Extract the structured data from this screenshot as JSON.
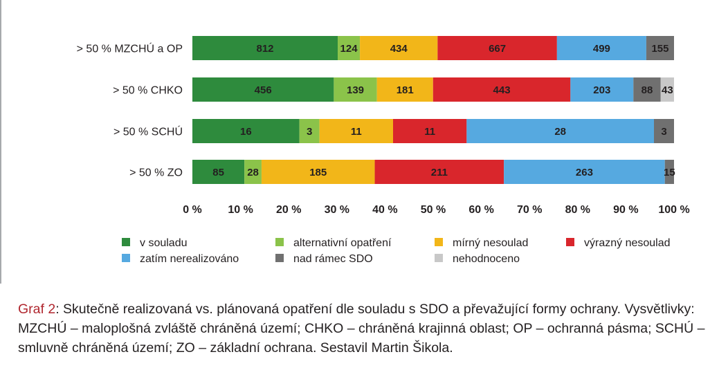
{
  "chart_data": {
    "type": "bar",
    "orientation": "horizontal",
    "stacking": "percent",
    "categories": [
      "> 50 % MZCHÚ a OP",
      "> 50 % CHKO",
      "> 50 % SCHÚ",
      "> 50 % ZO"
    ],
    "series": [
      {
        "name": "v souladu",
        "color": "#2e8b3d",
        "values": [
          812,
          456,
          16,
          85
        ]
      },
      {
        "name": "alternativní opatření",
        "color": "#8bc34a",
        "values": [
          124,
          139,
          3,
          28
        ]
      },
      {
        "name": "mírný nesoulad",
        "color": "#f2b619",
        "values": [
          434,
          181,
          11,
          185
        ]
      },
      {
        "name": "výrazný nesoulad",
        "color": "#d9262c",
        "values": [
          667,
          443,
          11,
          211
        ]
      },
      {
        "name": "zatím nerealizováno",
        "color": "#56a9e0",
        "values": [
          499,
          203,
          28,
          263
        ]
      },
      {
        "name": "nad rámec SDO",
        "color": "#707070",
        "values": [
          155,
          88,
          3,
          15
        ]
      },
      {
        "name": "nehodnoceno",
        "color": "#c8c8c8",
        "values": [
          0,
          43,
          0,
          0
        ]
      }
    ],
    "x_ticks": [
      "0 %",
      "10 %",
      "20 %",
      "30 %",
      "40 %",
      "50 %",
      "60 %",
      "70 %",
      "80 %",
      "90 %",
      "100 %"
    ],
    "xlim": [
      0,
      100
    ],
    "grid": false,
    "legend_position": "bottom"
  },
  "caption": {
    "label": "Graf 2",
    "text": ": Skutečně realizovaná vs. plánovaná opatření dle souladu s SDO a převažující formy ochrany. Vysvětlivky: MZCHÚ – maloplošná zvláště chráněná území; CHKO – chráněná krajinná oblast; OP – ochranná pásma; SCHÚ – smluvně chráněná území; ZO – základní ochrana. Sestavil Martin Šikola."
  }
}
